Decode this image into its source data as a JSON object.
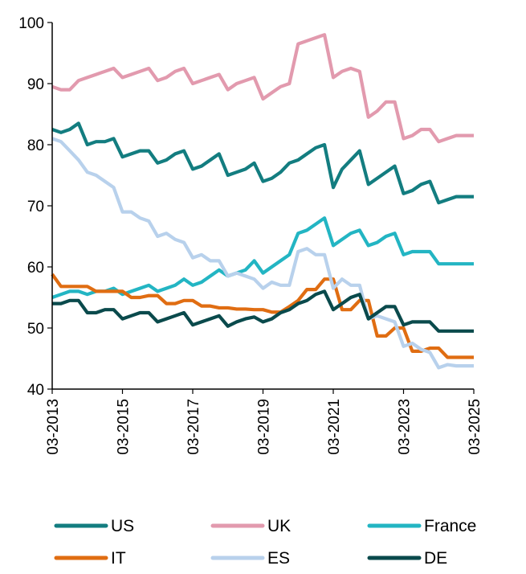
{
  "chart_data": {
    "type": "line",
    "title": "",
    "xlabel": "",
    "ylabel": "",
    "ylim": [
      40,
      100
    ],
    "yticks": [
      "40",
      "50",
      "60",
      "70",
      "80",
      "90",
      "100"
    ],
    "xticks": [
      "03-2013",
      "03-2015",
      "03-2017",
      "03-2019",
      "03-2021",
      "03-2023",
      "03-2025"
    ],
    "grid": false,
    "legend_position": "bottom",
    "x": [
      "03-2013",
      "06-2013",
      "09-2013",
      "12-2013",
      "03-2014",
      "06-2014",
      "09-2014",
      "12-2014",
      "03-2015",
      "06-2015",
      "09-2015",
      "12-2015",
      "03-2016",
      "06-2016",
      "09-2016",
      "12-2016",
      "03-2017",
      "06-2017",
      "09-2017",
      "12-2017",
      "03-2018",
      "06-2018",
      "09-2018",
      "12-2018",
      "03-2019",
      "06-2019",
      "09-2019",
      "12-2019",
      "03-2020",
      "06-2020",
      "09-2020",
      "12-2020",
      "03-2021",
      "06-2021",
      "09-2021",
      "12-2021",
      "03-2022",
      "06-2022",
      "09-2022",
      "12-2022",
      "03-2023",
      "06-2023",
      "09-2023",
      "12-2023",
      "03-2024",
      "06-2024",
      "09-2024",
      "12-2024",
      "03-2025"
    ],
    "series": [
      {
        "name": "US",
        "color": "#137d80",
        "values": [
          82.5,
          82.0,
          82.5,
          83.5,
          80.0,
          80.5,
          80.5,
          81.0,
          78.0,
          78.5,
          79.0,
          79.0,
          77.0,
          77.5,
          78.5,
          79.0,
          76.0,
          76.5,
          77.5,
          78.5,
          75.0,
          75.5,
          76.0,
          77.0,
          74.0,
          74.5,
          75.5,
          77.0,
          77.5,
          78.5,
          79.5,
          80.0,
          73.0,
          76.0,
          77.5,
          79.0,
          73.5,
          74.5,
          75.5,
          76.5,
          72.0,
          72.5,
          73.5,
          74.0,
          70.5,
          71.0,
          71.5,
          71.5,
          71.5
        ]
      },
      {
        "name": "UK",
        "color": "#e29aae",
        "values": [
          89.5,
          89.0,
          89.0,
          90.5,
          91.0,
          91.5,
          92.0,
          92.5,
          91.0,
          91.5,
          92.0,
          92.5,
          90.5,
          91.0,
          92.0,
          92.5,
          90.0,
          90.5,
          91.0,
          91.5,
          89.0,
          90.0,
          90.5,
          91.0,
          87.5,
          88.5,
          89.5,
          90.0,
          96.5,
          97.0,
          97.5,
          98.0,
          91.0,
          92.0,
          92.5,
          92.0,
          84.5,
          85.5,
          87.0,
          87.0,
          81.0,
          81.5,
          82.5,
          82.5,
          80.5,
          81.0,
          81.5,
          81.5,
          81.5
        ]
      },
      {
        "name": "France",
        "color": "#23b5c3",
        "values": [
          55.0,
          55.5,
          56.0,
          56.0,
          55.5,
          56.0,
          56.0,
          56.5,
          55.5,
          56.0,
          56.5,
          57.0,
          56.0,
          56.5,
          57.0,
          58.0,
          57.0,
          57.5,
          58.5,
          59.5,
          58.5,
          59.0,
          59.5,
          61.0,
          59.0,
          60.0,
          61.0,
          62.0,
          65.5,
          66.0,
          67.0,
          68.0,
          63.5,
          64.5,
          65.5,
          66.0,
          63.5,
          64.0,
          65.0,
          65.5,
          62.0,
          62.5,
          62.5,
          62.5,
          60.5,
          60.5,
          60.5,
          60.5,
          60.5
        ]
      },
      {
        "name": "IT",
        "color": "#e06d12",
        "values": [
          58.8,
          56.8,
          56.8,
          56.8,
          56.8,
          56.0,
          56.0,
          56.0,
          56.0,
          55.0,
          55.0,
          55.3,
          55.3,
          54.0,
          54.0,
          54.5,
          54.5,
          53.6,
          53.6,
          53.3,
          53.3,
          53.1,
          53.1,
          53.0,
          53.0,
          52.6,
          52.6,
          53.5,
          54.5,
          56.3,
          56.3,
          58.0,
          58.0,
          53.0,
          53.0,
          54.5,
          54.5,
          48.7,
          48.7,
          50.0,
          50.0,
          46.2,
          46.2,
          46.7,
          46.7,
          45.2,
          45.2,
          45.2,
          45.2
        ]
      },
      {
        "name": "ES",
        "color": "#b8d1ec",
        "values": [
          81.0,
          80.5,
          79.0,
          77.5,
          75.5,
          75.0,
          74.0,
          73.0,
          69.0,
          69.0,
          68.0,
          67.5,
          65.0,
          65.5,
          64.5,
          64.0,
          61.5,
          62.0,
          61.0,
          61.0,
          58.5,
          59.0,
          58.5,
          58.0,
          56.5,
          57.5,
          57.0,
          57.0,
          62.5,
          63.0,
          62.0,
          62.0,
          56.5,
          58.0,
          57.0,
          57.0,
          51.5,
          52.0,
          51.5,
          51.0,
          47.0,
          47.5,
          46.5,
          46.0,
          43.5,
          44.0,
          43.8,
          43.8,
          43.8
        ]
      },
      {
        "name": "DE",
        "color": "#0a4a4c",
        "values": [
          54.0,
          54.0,
          54.5,
          54.5,
          52.5,
          52.5,
          53.0,
          53.0,
          51.5,
          52.0,
          52.5,
          52.5,
          51.0,
          51.5,
          52.0,
          52.5,
          50.5,
          51.0,
          51.5,
          52.0,
          50.3,
          51.0,
          51.5,
          51.8,
          51.0,
          51.5,
          52.5,
          53.0,
          54.0,
          54.5,
          55.5,
          56.0,
          53.0,
          54.0,
          55.0,
          55.5,
          51.5,
          52.5,
          53.5,
          53.5,
          50.5,
          51.0,
          51.0,
          51.0,
          49.5,
          49.5,
          49.5,
          49.5,
          49.5
        ]
      }
    ]
  }
}
